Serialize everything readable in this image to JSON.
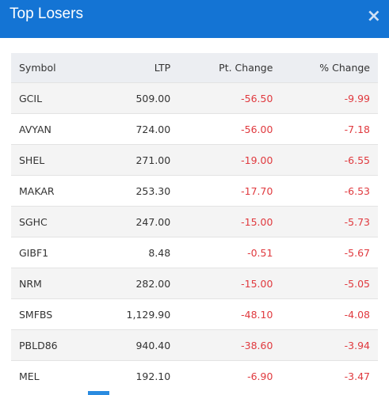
{
  "header": {
    "title": "Top Losers",
    "close": "×"
  },
  "table": {
    "columns": [
      "Symbol",
      "LTP",
      "Pt. Change",
      "% Change"
    ],
    "rows": [
      [
        "GCIL",
        "509.00",
        "-56.50",
        "-9.99"
      ],
      [
        "AVYAN",
        "724.00",
        "-56.00",
        "-7.18"
      ],
      [
        "SHEL",
        "271.00",
        "-19.00",
        "-6.55"
      ],
      [
        "MAKAR",
        "253.30",
        "-17.70",
        "-6.53"
      ],
      [
        "SGHC",
        "247.00",
        "-15.00",
        "-5.73"
      ],
      [
        "GIBF1",
        "8.48",
        "-0.51",
        "-5.67"
      ],
      [
        "NRM",
        "282.00",
        "-15.00",
        "-5.05"
      ],
      [
        "SMFBS",
        "1,129.90",
        "-48.10",
        "-4.08"
      ],
      [
        "PBLD86",
        "940.40",
        "-38.60",
        "-3.94"
      ],
      [
        "MEL",
        "192.10",
        "-6.90",
        "-3.47"
      ]
    ]
  }
}
